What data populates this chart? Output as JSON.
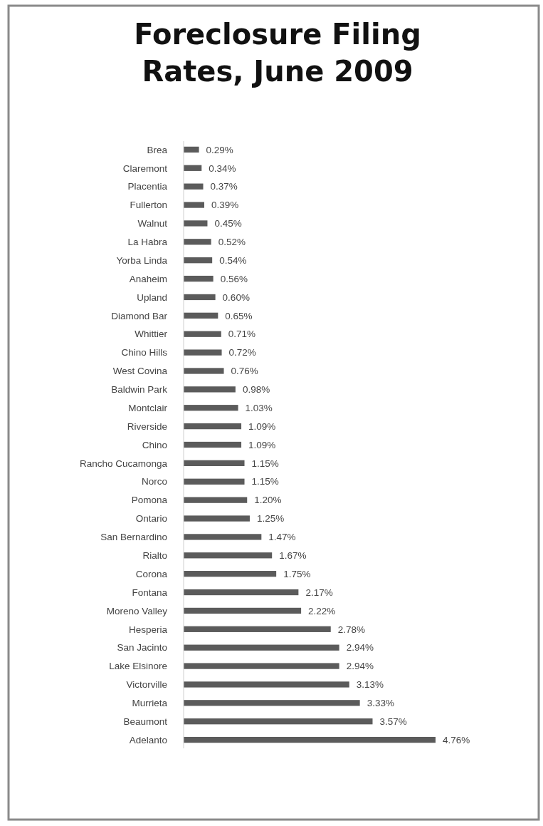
{
  "chart_data": {
    "type": "bar",
    "orientation": "horizontal",
    "title": "Foreclosure Filing Rates, June 2009",
    "categories": [
      "Brea",
      "Claremont",
      "Placentia",
      "Fullerton",
      "Walnut",
      "La Habra",
      "Yorba Linda",
      "Anaheim",
      "Upland",
      "Diamond Bar",
      "Whittier",
      "Chino Hills",
      "West Covina",
      "Baldwin Park",
      "Montclair",
      "Riverside",
      "Chino",
      "Rancho Cucamonga",
      "Norco",
      "Pomona",
      "Ontario",
      "San Bernardino",
      "Rialto",
      "Corona",
      "Fontana",
      "Moreno Valley",
      "Hesperia",
      "San Jacinto",
      "Lake Elsinore",
      "Victorville",
      "Murrieta",
      "Beaumont",
      "Adelanto"
    ],
    "values": [
      0.29,
      0.34,
      0.37,
      0.39,
      0.45,
      0.52,
      0.54,
      0.56,
      0.6,
      0.65,
      0.71,
      0.72,
      0.76,
      0.98,
      1.03,
      1.09,
      1.09,
      1.15,
      1.15,
      1.2,
      1.25,
      1.47,
      1.67,
      1.75,
      2.17,
      2.22,
      2.78,
      2.94,
      2.94,
      3.13,
      3.33,
      3.57,
      4.76
    ],
    "value_labels": [
      "0.29%",
      "0.34%",
      "0.37%",
      "0.39%",
      "0.45%",
      "0.52%",
      "0.54%",
      "0.56%",
      "0.60%",
      "0.65%",
      "0.71%",
      "0.72%",
      "0.76%",
      "0.98%",
      "1.03%",
      "1.09%",
      "1.09%",
      "1.15%",
      "1.15%",
      "1.20%",
      "1.25%",
      "1.47%",
      "1.67%",
      "1.75%",
      "2.17%",
      "2.22%",
      "2.78%",
      "2.94%",
      "2.94%",
      "3.13%",
      "3.33%",
      "3.57%",
      "4.76%"
    ],
    "color": "#5b5b5b",
    "tick_labels": "y"
  }
}
